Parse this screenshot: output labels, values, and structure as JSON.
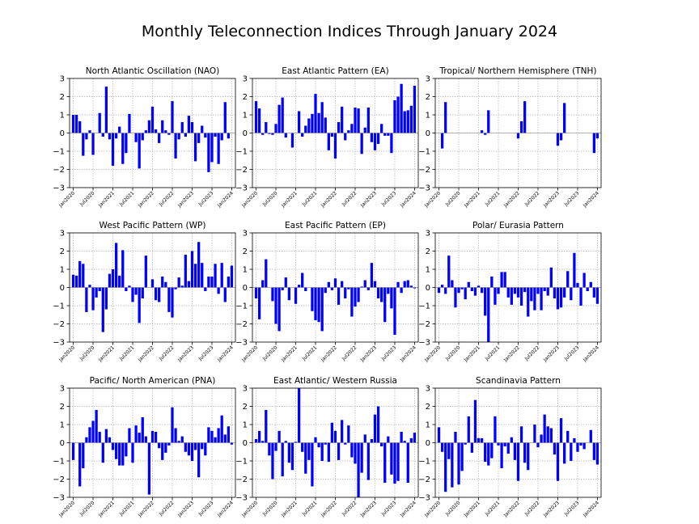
{
  "figure": {
    "title": "Monthly Teleconnection Indices Through January 2024"
  },
  "colors": {
    "bar": "#0000ff",
    "grid": "#b0b0b0",
    "axis": "#000000"
  },
  "chart_data": [
    {
      "type": "bar",
      "title": "North Atlantic Oscillation (NAO)",
      "ylim": [
        -3,
        3
      ],
      "yticks": [
        -3,
        -2,
        -1,
        0,
        1,
        2,
        3
      ],
      "xtick_labels": [
        "Jan2020",
        "Jul2020",
        "Jan2021",
        "Jul2021",
        "Jan2022",
        "Jul2022",
        "Jan2023",
        "Jul2023",
        "Jan2024"
      ],
      "grid": true,
      "categories_note": "monthly Jan2020–Jan2024",
      "values": [
        1.0,
        1.0,
        0.65,
        -1.25,
        -0.35,
        0.15,
        -1.2,
        0.0,
        1.1,
        -0.2,
        2.55,
        -0.35,
        -1.8,
        -0.3,
        0.35,
        -1.7,
        -1.1,
        1.05,
        0.0,
        -0.5,
        -1.95,
        -0.4,
        0.15,
        0.7,
        1.45,
        0.2,
        -0.55,
        0.7,
        0.15,
        -0.1,
        1.75,
        -1.4,
        -0.35,
        0.6,
        -0.2,
        0.95,
        0.6,
        -1.55,
        -0.55,
        0.4,
        -0.25,
        -2.15,
        -1.6,
        -0.2,
        -1.7,
        -0.4,
        1.7,
        -0.3,
        0.0
      ]
    },
    {
      "type": "bar",
      "title": "East Atlantic Pattern (EA)",
      "ylim": [
        -3,
        3
      ],
      "yticks": [
        -3,
        -2,
        -1,
        0,
        1,
        2,
        3
      ],
      "xtick_labels": [
        "Jan2020",
        "Jul2020",
        "Jan2021",
        "Jul2021",
        "Jan2022",
        "Jul2022",
        "Jan2023",
        "Jul2023",
        "Jan2024"
      ],
      "grid": true,
      "values": [
        1.75,
        1.35,
        -0.1,
        0.6,
        -0.05,
        -0.1,
        0.5,
        1.55,
        1.95,
        -0.25,
        0.0,
        -0.8,
        0.0,
        1.2,
        -0.2,
        0.4,
        0.8,
        1.05,
        2.15,
        1.1,
        1.7,
        0.85,
        -0.95,
        -0.2,
        -1.4,
        0.6,
        1.45,
        -0.4,
        0.15,
        0.5,
        1.4,
        1.35,
        -1.15,
        0.3,
        1.4,
        -0.5,
        -0.95,
        -0.6,
        0.5,
        -0.15,
        -0.15,
        -1.1,
        1.8,
        2.0,
        2.7,
        1.2,
        1.25,
        1.5,
        2.6
      ]
    },
    {
      "type": "bar",
      "title": "Tropical/ Northern Hemisphere (TNH)",
      "ylim": [
        -3,
        3
      ],
      "yticks": [
        -3,
        -2,
        -1,
        0,
        1,
        2,
        3
      ],
      "xtick_labels": [
        "Jan2020",
        "Jul2020",
        "Jan2021",
        "Jul2021",
        "Jan2022",
        "Jul2022",
        "Jan2023",
        "Jul2023",
        "Jan2024"
      ],
      "grid": true,
      "values": [
        0.0,
        -0.85,
        1.7,
        0.0,
        0.0,
        0.0,
        0.0,
        0.0,
        0.0,
        0.0,
        0.0,
        0.0,
        0.0,
        0.15,
        -0.1,
        1.25,
        0.0,
        0.0,
        0.0,
        0.0,
        0.0,
        0.0,
        0.0,
        0.0,
        -0.3,
        0.65,
        1.75,
        0.0,
        0.0,
        0.0,
        0.0,
        0.0,
        0.0,
        0.0,
        0.0,
        0.0,
        -0.7,
        -0.4,
        1.65,
        0.0,
        0.0,
        0.0,
        0.0,
        0.0,
        0.0,
        0.0,
        0.0,
        -1.1,
        -0.3
      ]
    },
    {
      "type": "bar",
      "title": "West Pacific Pattern (WP)",
      "ylim": [
        -3,
        3
      ],
      "yticks": [
        -3,
        -2,
        -1,
        0,
        1,
        2,
        3
      ],
      "xtick_labels": [
        "Jan2020",
        "Jul2020",
        "Jan2021",
        "Jul2021",
        "Jan2022",
        "Jul2022",
        "Jan2023",
        "Jul2023",
        "Jan2024"
      ],
      "grid": true,
      "values": [
        0.7,
        0.65,
        1.45,
        1.3,
        -1.35,
        0.15,
        -1.25,
        -0.55,
        -0.2,
        -2.45,
        -1.2,
        0.75,
        1.0,
        2.45,
        0.65,
        2.05,
        -0.2,
        0.1,
        -0.8,
        -0.4,
        -1.95,
        -0.6,
        1.75,
        0.0,
        0.45,
        -0.7,
        -0.8,
        0.6,
        0.3,
        -1.35,
        -1.65,
        -0.1,
        0.55,
        0.1,
        1.8,
        0.35,
        2.0,
        1.3,
        2.5,
        1.35,
        -0.2,
        0.6,
        0.6,
        1.3,
        -0.35,
        1.35,
        -0.8,
        0.6,
        1.2
      ]
    },
    {
      "type": "bar",
      "title": "East Pacific Pattern (EP)",
      "ylim": [
        -3,
        3
      ],
      "yticks": [
        -3,
        -2,
        -1,
        0,
        1,
        2,
        3
      ],
      "xtick_labels": [
        "Jan2020",
        "Jul2020",
        "Jan2021",
        "Jul2021",
        "Jan2022",
        "Jul2022",
        "Jan2023",
        "Jul2023",
        "Jan2024"
      ],
      "grid": true,
      "values": [
        -0.6,
        -1.75,
        0.4,
        1.55,
        0.0,
        -0.75,
        -2.0,
        -2.4,
        -0.15,
        0.55,
        -0.7,
        0.0,
        -0.9,
        0.15,
        0.8,
        -0.2,
        0.0,
        -1.3,
        -1.8,
        -1.9,
        -2.4,
        -0.3,
        0.3,
        -0.15,
        0.5,
        -0.95,
        0.35,
        -0.6,
        -0.1,
        -1.6,
        -1.05,
        -0.8,
        0.05,
        0.4,
        -0.15,
        1.35,
        0.35,
        -0.6,
        -0.8,
        -1.9,
        -0.35,
        -1.15,
        -2.6,
        0.3,
        -0.3,
        0.35,
        0.4,
        0.1,
        -0.05
      ]
    },
    {
      "type": "bar",
      "title": "Polar/ Eurasia Pattern",
      "ylim": [
        -3,
        3
      ],
      "yticks": [
        -3,
        -2,
        -1,
        0,
        1,
        2,
        3
      ],
      "xtick_labels": [
        "Jan2020",
        "Jul2020",
        "Jan2021",
        "Jul2021",
        "Jan2022",
        "Jul2022",
        "Jan2023",
        "Jul2023",
        "Jan2024"
      ],
      "grid": true,
      "values": [
        -0.3,
        0.15,
        -0.35,
        1.75,
        0.4,
        -1.1,
        -0.3,
        -0.1,
        -0.65,
        0.3,
        -0.2,
        -0.45,
        0.1,
        -0.3,
        -1.55,
        -3.0,
        0.6,
        -0.95,
        -0.35,
        0.85,
        0.85,
        -0.55,
        -0.95,
        -0.35,
        -0.55,
        -1.0,
        -0.25,
        -1.6,
        -0.75,
        -1.25,
        -0.35,
        -1.25,
        -0.2,
        -0.45,
        1.1,
        -0.6,
        -1.2,
        -1.1,
        -0.55,
        0.9,
        -0.7,
        1.9,
        0.25,
        -1.0,
        0.8,
        -0.2,
        0.3,
        -0.55,
        -0.9
      ]
    },
    {
      "type": "bar",
      "title": "Pacific/ North American (PNA)",
      "ylim": [
        -3,
        3
      ],
      "yticks": [
        -3,
        -2,
        -1,
        0,
        1,
        2,
        3
      ],
      "xtick_labels": [
        "Jan2020",
        "Jul2020",
        "Jan2021",
        "Jul2021",
        "Jan2022",
        "Jul2022",
        "Jan2023",
        "Jul2023",
        "Jan2024"
      ],
      "grid": true,
      "values": [
        -0.95,
        0.0,
        -2.4,
        -1.4,
        0.3,
        0.85,
        1.2,
        1.8,
        0.6,
        -1.1,
        0.75,
        0.3,
        -0.4,
        -0.9,
        -1.25,
        -1.25,
        -0.75,
        0.8,
        -1.1,
        0.95,
        0.55,
        1.4,
        0.35,
        -2.85,
        0.65,
        0.6,
        -0.3,
        -0.95,
        -0.55,
        -0.15,
        1.95,
        0.8,
        0.1,
        0.35,
        -0.5,
        -0.7,
        -1.0,
        -0.4,
        -1.9,
        -0.35,
        -0.7,
        0.85,
        0.65,
        0.3,
        0.8,
        1.5,
        0.45,
        0.9,
        -0.1
      ]
    },
    {
      "type": "bar",
      "title": "East Atlantic/ Western Russia",
      "ylim": [
        -3,
        3
      ],
      "yticks": [
        -3,
        -2,
        -1,
        0,
        1,
        2,
        3
      ],
      "xtick_labels": [
        "Jan2020",
        "Jul2020",
        "Jan2021",
        "Jul2021",
        "Jan2022",
        "Jul2022",
        "Jan2023",
        "Jul2023",
        "Jan2024"
      ],
      "grid": true,
      "values": [
        0.2,
        0.65,
        0.1,
        1.8,
        -0.7,
        -2.0,
        -0.45,
        0.65,
        -1.85,
        0.1,
        -1.1,
        -1.5,
        0.05,
        3.0,
        -0.5,
        -1.7,
        -0.95,
        -2.4,
        0.3,
        -0.25,
        -1.0,
        -0.1,
        -1.05,
        1.1,
        0.65,
        -0.95,
        1.25,
        -0.1,
        0.95,
        -0.8,
        -1.15,
        -3.0,
        -1.65,
        0.45,
        -2.05,
        0.2,
        1.55,
        2.0,
        -0.2,
        -2.2,
        0.35,
        -1.75,
        -2.25,
        -2.1,
        0.6,
        0.1,
        -2.2,
        0.25,
        0.55
      ]
    },
    {
      "type": "bar",
      "title": "Scandinavia Pattern",
      "ylim": [
        -3,
        3
      ],
      "yticks": [
        -3,
        -2,
        -1,
        0,
        1,
        2,
        3
      ],
      "xtick_labels": [
        "Jan2020",
        "Jul2020",
        "Jan2021",
        "Jul2021",
        "Jan2022",
        "Jul2022",
        "Jan2023",
        "Jul2023",
        "Jan2024"
      ],
      "grid": true,
      "values": [
        0.85,
        -0.5,
        -2.7,
        -0.9,
        -2.45,
        0.6,
        -2.3,
        -1.55,
        -0.1,
        1.45,
        -0.55,
        2.35,
        0.25,
        0.25,
        -1.05,
        -1.25,
        -0.85,
        1.45,
        -0.15,
        -1.4,
        -0.2,
        -0.6,
        0.3,
        -0.95,
        -2.1,
        0.9,
        -1.1,
        -1.5,
        0.0,
        1.0,
        -0.25,
        0.45,
        1.55,
        0.9,
        0.8,
        -0.65,
        -2.1,
        1.35,
        -1.15,
        0.65,
        -1.0,
        0.25,
        -0.5,
        -0.15,
        -0.35,
        0.0,
        0.7,
        -0.95,
        -1.2
      ]
    }
  ]
}
